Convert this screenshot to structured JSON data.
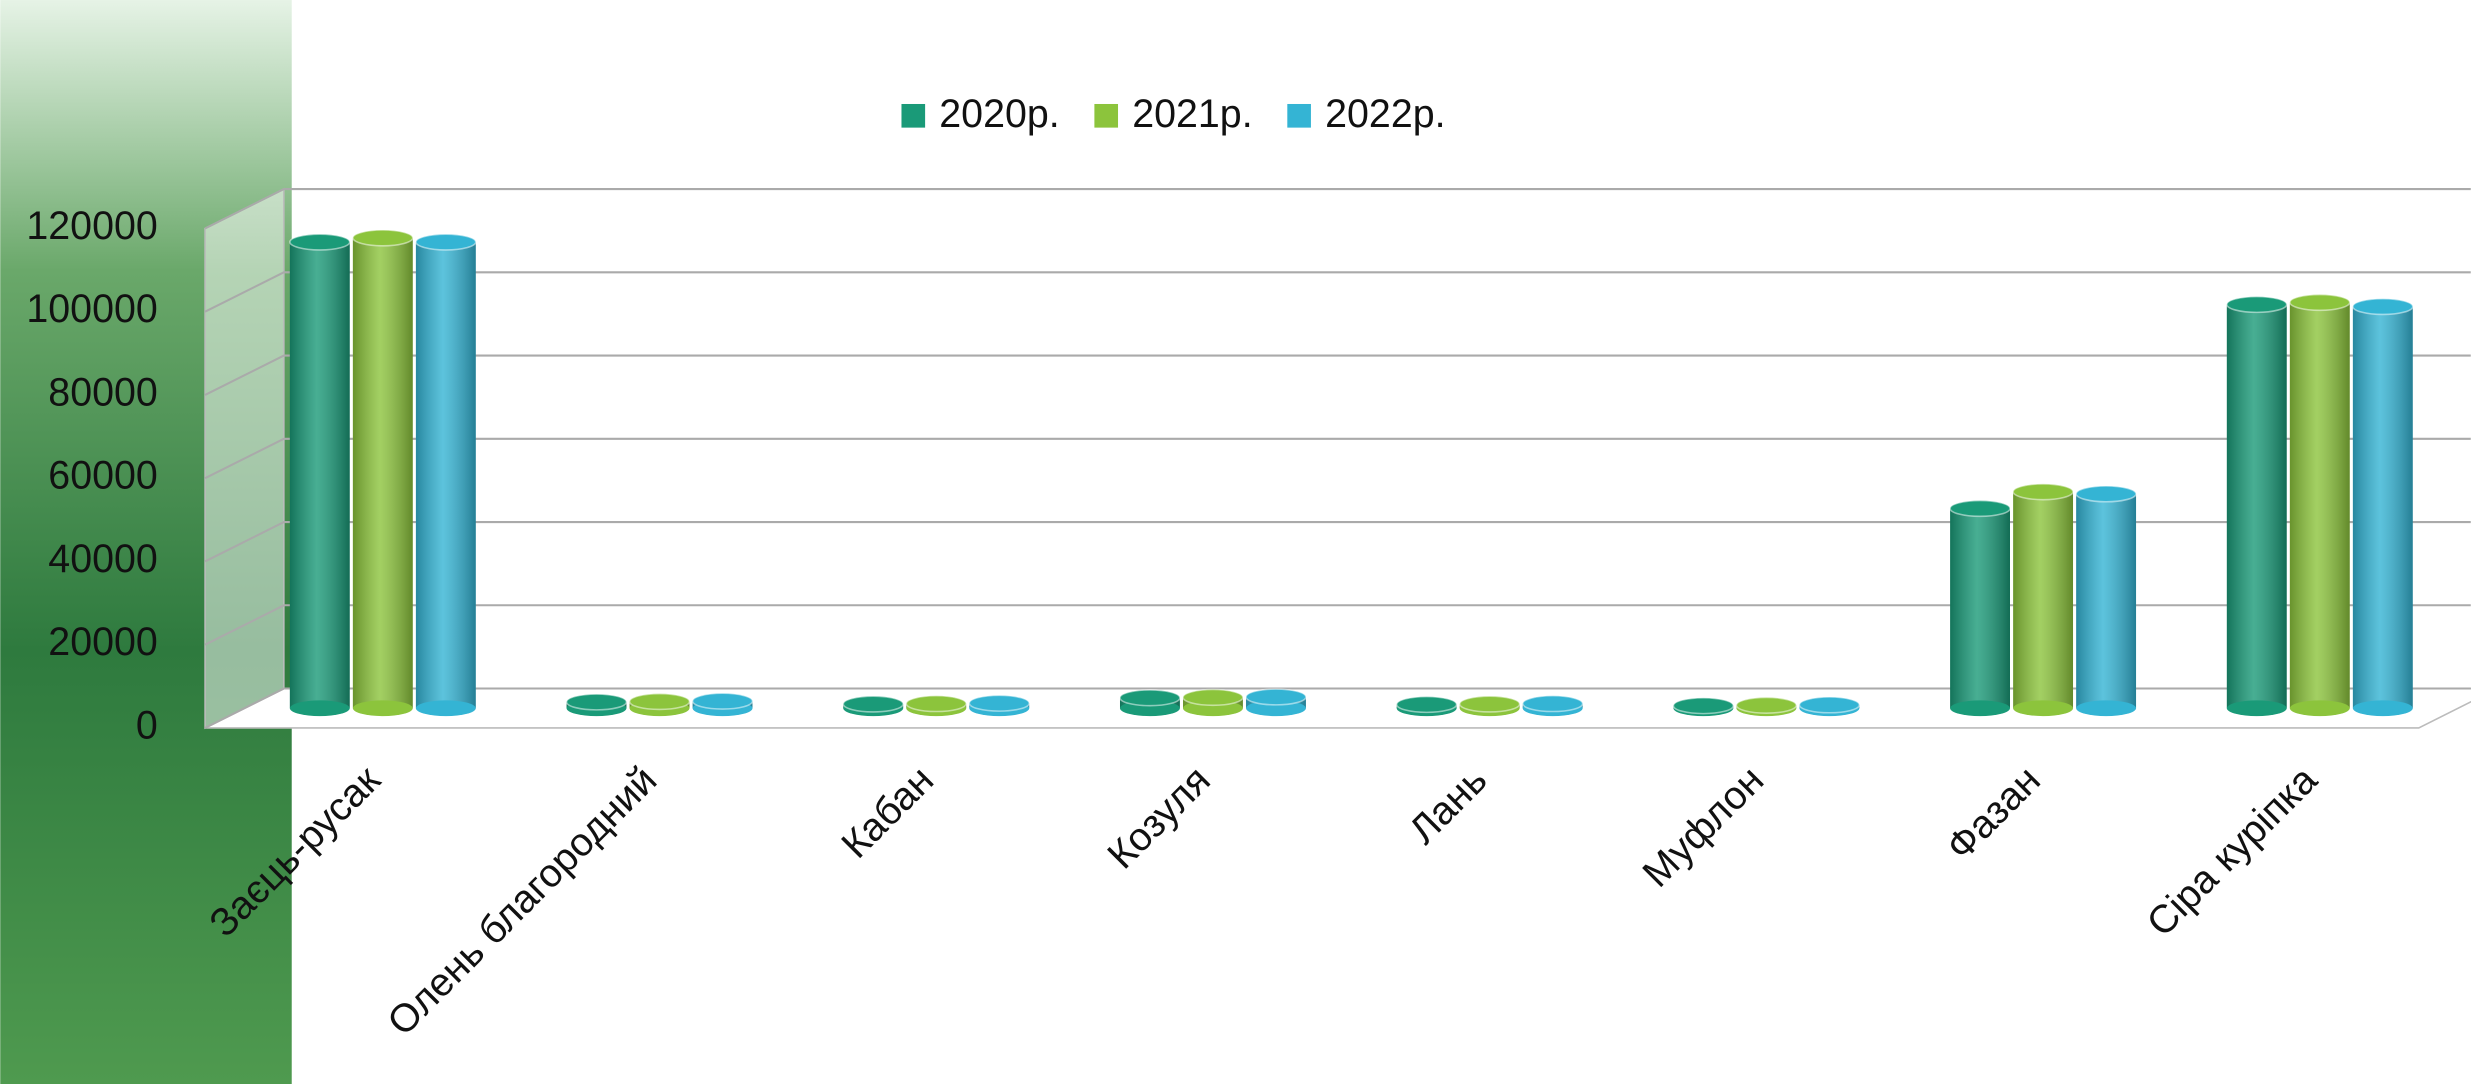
{
  "chart_data": {
    "type": "bar3d",
    "categories": [
      "Заєць-русак",
      "Олень благородний",
      "Кабан",
      "Козуля",
      "Лань",
      "Муфлон",
      "Фазан",
      "Сіра курiпка"
    ],
    "series": [
      {
        "name": "2020р.",
        "color": "#1a9a78",
        "values": [
          112000,
          1500,
          1000,
          2500,
          900,
          600,
          48000,
          97000
        ]
      },
      {
        "name": "2021р.",
        "color": "#8cc43c",
        "values": [
          113000,
          1600,
          1100,
          2600,
          1000,
          700,
          52000,
          97500
        ]
      },
      {
        "name": "2022р.",
        "color": "#34b4d4",
        "values": [
          112000,
          1700,
          1200,
          2700,
          1100,
          800,
          51500,
          96500
        ]
      }
    ],
    "ylim": [
      0,
      120000
    ],
    "yticks": [
      0,
      20000,
      40000,
      60000,
      80000,
      100000,
      120000
    ],
    "grid": true,
    "legend": "top"
  }
}
